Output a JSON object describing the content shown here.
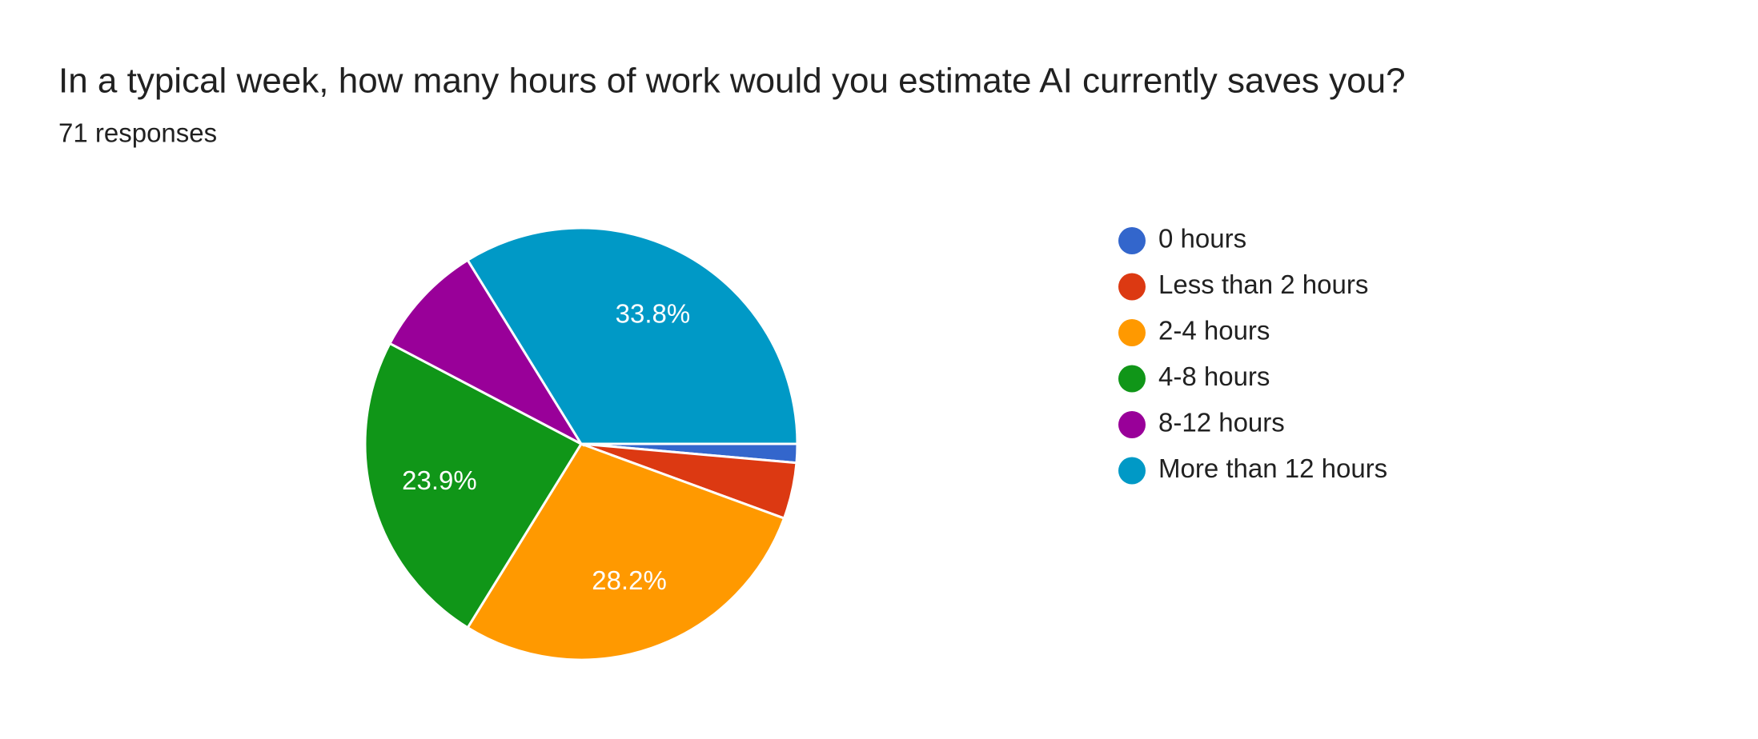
{
  "chart_data": {
    "type": "pie",
    "title": "In a typical week, how many hours of work would you estimate AI currently saves you?",
    "subtitle": "71 responses",
    "categories": [
      "0 hours",
      "Less than 2 hours",
      "2-4 hours",
      "4-8 hours",
      "8-12 hours",
      "More than 12 hours"
    ],
    "values": [
      1.4,
      4.2,
      28.2,
      23.9,
      8.5,
      33.8
    ],
    "value_labels": [
      null,
      null,
      "28.2%",
      "23.9%",
      null,
      "33.8%"
    ],
    "colors": [
      "#3366cc",
      "#dc3912",
      "#ff9900",
      "#109618",
      "#990099",
      "#0099c6"
    ],
    "legend": "right"
  }
}
